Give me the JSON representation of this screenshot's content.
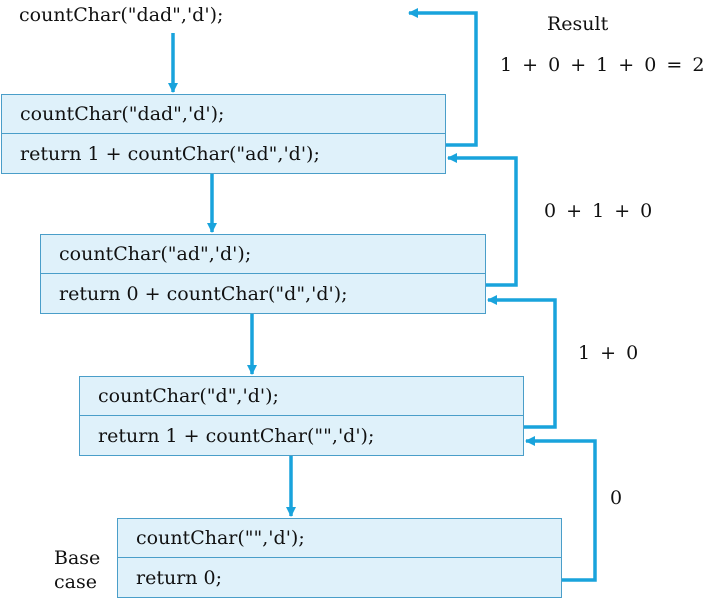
{
  "initial_call": "countChar(\"dad\",'d');",
  "result_label": "Result",
  "result_expr": "1 + 0 + 1 + 0 = 2",
  "frames": [
    {
      "call": "countChar(\"dad\",'d');",
      "statement": "return 1  +  countChar(\"ad\",'d');"
    },
    {
      "call": "countChar(\"ad\",'d');",
      "statement": "return 0  +  countChar(\"d\",'d');"
    },
    {
      "call": "countChar(\"d\",'d');",
      "statement": "return 1  +  countChar(\"\",'d');"
    },
    {
      "call": "countChar(\"\",'d');",
      "statement": "return 0;"
    }
  ],
  "return_labels": [
    "0 + 1 + 0",
    "1 + 0",
    "0"
  ],
  "base_case_label": [
    "Base",
    "case"
  ],
  "colors": {
    "arrow": "#19a3dc",
    "frame_fill": "#dff1fa",
    "frame_border": "#4a9ec9"
  }
}
